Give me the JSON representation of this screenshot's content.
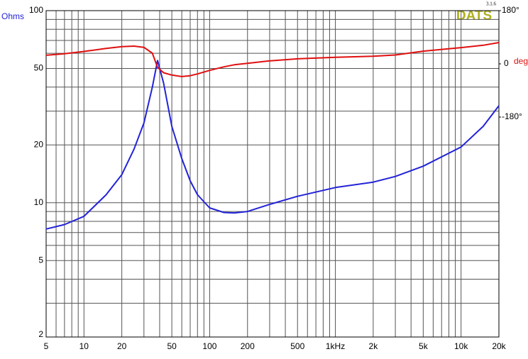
{
  "chart_data": {
    "type": "line",
    "log_x": true,
    "log_y": true,
    "ylabel": "Ohms",
    "y2label": "deg",
    "badge": "DATS",
    "version": "3.1.6",
    "x": [
      5,
      7,
      10,
      15,
      20,
      25,
      30,
      35,
      38.5,
      43,
      50,
      60,
      70,
      80,
      100,
      130,
      157,
      200,
      300,
      500,
      1000,
      2000,
      3000,
      5000,
      10000,
      15000,
      20000
    ],
    "series": [
      {
        "color": "#2323d8",
        "axis": "y",
        "values": [
          7.3,
          7.7,
          8.5,
          11,
          14,
          19,
          26,
          40,
          55,
          42,
          25,
          17,
          13,
          11,
          9.4,
          8.9,
          8.85,
          9.0,
          9.8,
          10.8,
          12.0,
          12.8,
          13.7,
          15.5,
          19.5,
          25,
          32
        ]
      },
      {
        "color": "#e01010",
        "axis": "y2",
        "values": [
          29,
          34,
          42,
          52,
          58,
          60,
          56,
          36,
          -12,
          -30,
          -38,
          -43,
          -40,
          -34,
          -22,
          -10,
          -3,
          2,
          10,
          17,
          22,
          26,
          30,
          43,
          55,
          63,
          72
        ]
      }
    ],
    "xlim": [
      5,
      20000
    ],
    "xticks": [
      5,
      10,
      20,
      50,
      100,
      200,
      500,
      {
        "value": 1000,
        "label": "1kHz"
      },
      {
        "value": 2000,
        "label": "2k"
      },
      {
        "value": 5000,
        "label": "5k"
      },
      {
        "value": 10000,
        "label": "10k"
      },
      {
        "value": 20000,
        "label": "20k"
      }
    ],
    "xgrid": [
      6,
      7,
      8,
      9,
      30,
      40,
      60,
      70,
      80,
      90,
      300,
      400,
      600,
      700,
      800,
      900,
      3000,
      4000,
      6000,
      7000,
      8000,
      9000
    ],
    "ylim": [
      2,
      100
    ],
    "yticks": [
      2,
      5,
      10,
      20,
      50,
      100
    ],
    "ygrid": [
      3,
      4,
      6,
      7,
      8,
      9,
      30,
      40,
      60,
      70,
      80,
      90
    ],
    "y2lim": [
      -924,
      180
    ],
    "y2ticks": [
      {
        "value": 180,
        "label": "180°"
      },
      0,
      {
        "value": -180,
        "label": "-180°"
      }
    ]
  }
}
